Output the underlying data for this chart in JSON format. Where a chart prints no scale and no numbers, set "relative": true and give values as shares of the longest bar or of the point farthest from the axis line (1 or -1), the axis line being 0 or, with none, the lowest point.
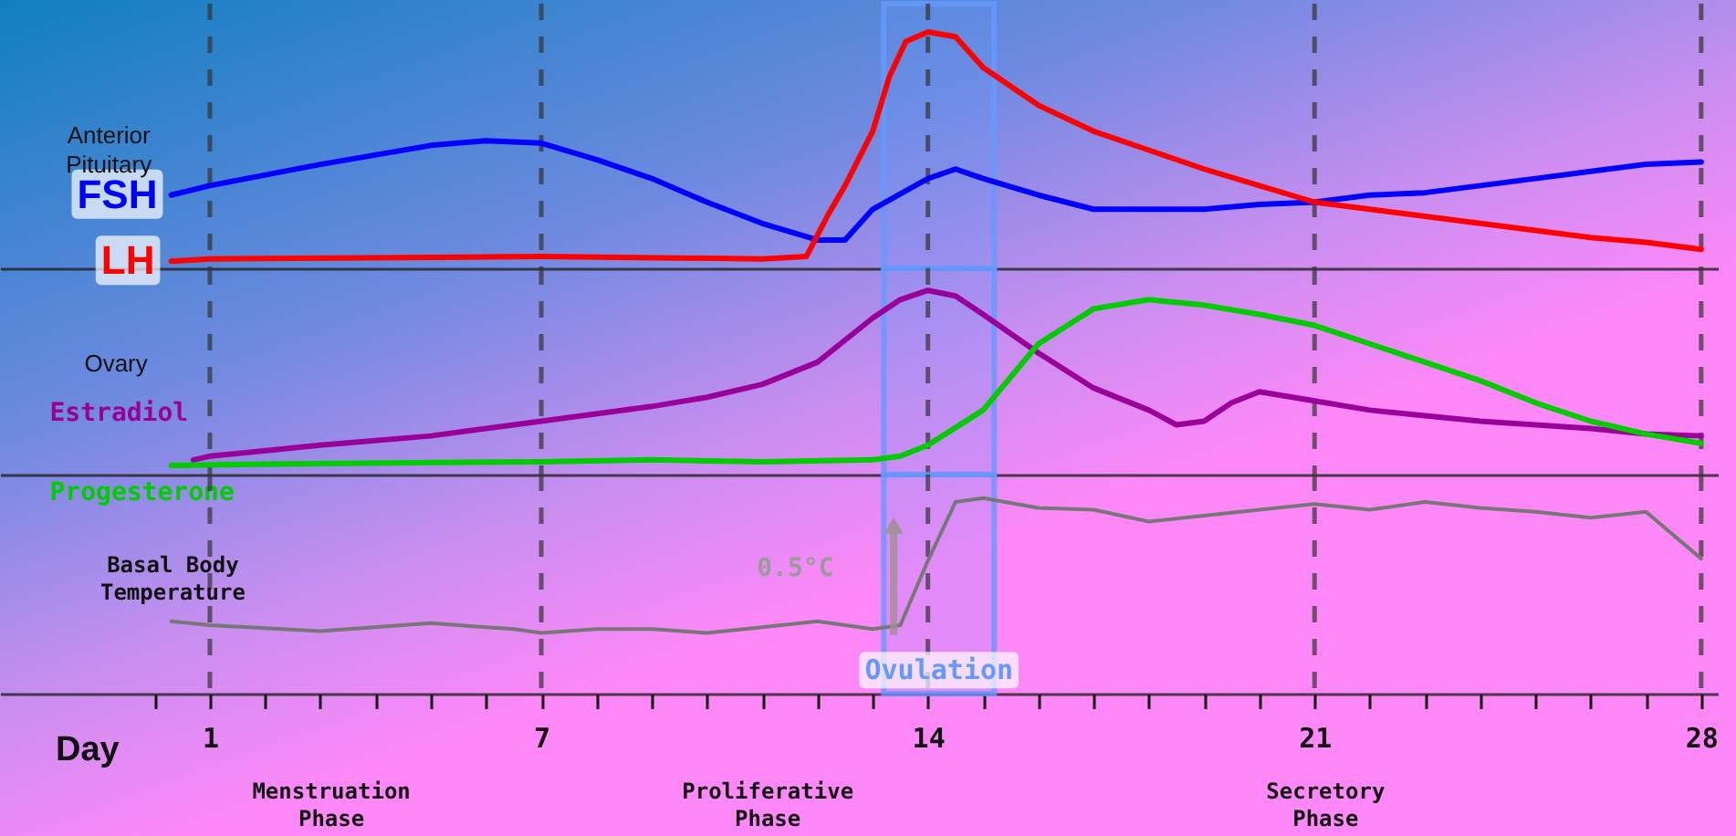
{
  "chart_data": [
    {
      "type": "line",
      "relative": true,
      "xlim": [
        -2.8,
        28.3
      ],
      "tick_labels": false,
      "annotations": [
        "Anterior Pituitary"
      ],
      "bands": [
        {
          "axis": "x",
          "from": 13.2,
          "to": 15.2,
          "color": "#6699ff"
        }
      ],
      "ref_lines": [
        {
          "axis": "x",
          "value": 1,
          "color": "#333333",
          "line_style": "dashed"
        },
        {
          "axis": "x",
          "value": 7,
          "color": "#333333",
          "line_style": "dashed"
        },
        {
          "axis": "x",
          "value": 14,
          "color": "#333333",
          "line_style": "dashed"
        },
        {
          "axis": "x",
          "value": 21,
          "color": "#333333",
          "line_style": "dashed"
        },
        {
          "axis": "x",
          "value": 28,
          "color": "#333333",
          "line_style": "dashed"
        }
      ],
      "series": [
        {
          "name": "FSH",
          "color": "#0000ff",
          "x": [
            0.3,
            1,
            3,
            5,
            6,
            7,
            8,
            9,
            10,
            11,
            12,
            12.5,
            13,
            14,
            14.5,
            15,
            16,
            17,
            18,
            19,
            20,
            21,
            22,
            23,
            24,
            25,
            26,
            27,
            28
          ],
          "values": [
            0.31,
            0.35,
            0.44,
            0.52,
            0.54,
            0.53,
            0.46,
            0.38,
            0.28,
            0.19,
            0.12,
            0.12,
            0.25,
            0.38,
            0.42,
            0.38,
            0.31,
            0.25,
            0.25,
            0.25,
            0.27,
            0.28,
            0.31,
            0.32,
            0.35,
            0.38,
            0.41,
            0.44,
            0.45
          ]
        },
        {
          "name": "LH",
          "color": "#ff0000",
          "x": [
            0.3,
            1,
            7,
            11,
            11.8,
            12.2,
            12.5,
            13,
            13.3,
            13.6,
            14,
            14.5,
            15,
            16,
            17,
            18,
            19,
            20,
            21,
            22,
            23,
            24,
            25,
            26,
            27,
            28
          ],
          "values": [
            0.03,
            0.04,
            0.05,
            0.04,
            0.05,
            0.23,
            0.35,
            0.58,
            0.81,
            0.96,
            1,
            0.98,
            0.85,
            0.69,
            0.58,
            0.5,
            0.42,
            0.35,
            0.28,
            0.25,
            0.22,
            0.19,
            0.16,
            0.13,
            0.11,
            0.08
          ]
        }
      ]
    },
    {
      "type": "line",
      "relative": true,
      "xlim": [
        -2.8,
        28.3
      ],
      "tick_labels": false,
      "annotations": [
        "Ovary"
      ],
      "bands": [
        {
          "axis": "x",
          "from": 13.2,
          "to": 15.2,
          "color": "#6699ff"
        }
      ],
      "ref_lines": [
        {
          "axis": "x",
          "value": 1,
          "color": "#333333",
          "line_style": "dashed"
        },
        {
          "axis": "x",
          "value": 7,
          "color": "#333333",
          "line_style": "dashed"
        },
        {
          "axis": "x",
          "value": 14,
          "color": "#333333",
          "line_style": "dashed"
        },
        {
          "axis": "x",
          "value": 21,
          "color": "#333333",
          "line_style": "dashed"
        },
        {
          "axis": "x",
          "value": 28,
          "color": "#333333",
          "line_style": "dashed"
        }
      ],
      "series": [
        {
          "name": "Estradiol",
          "color": "#990099",
          "x": [
            0.7,
            1,
            3,
            5,
            7,
            9,
            10,
            11,
            12,
            13,
            13.5,
            14,
            14.5,
            15,
            16,
            17,
            18,
            18.5,
            19,
            19.5,
            20,
            21,
            22,
            23,
            24,
            25,
            26,
            27,
            28
          ],
          "values": [
            0.08,
            0.1,
            0.16,
            0.21,
            0.29,
            0.37,
            0.42,
            0.49,
            0.61,
            0.85,
            0.95,
            1,
            0.97,
            0.87,
            0.66,
            0.47,
            0.35,
            0.27,
            0.29,
            0.39,
            0.45,
            0.4,
            0.35,
            0.32,
            0.29,
            0.27,
            0.25,
            0.22,
            0.21
          ]
        },
        {
          "name": "Progesterone",
          "color": "#00cc00",
          "x": [
            0.3,
            3,
            7,
            9,
            11,
            13,
            13.5,
            14,
            15,
            16,
            17,
            18,
            19,
            20,
            21,
            22,
            23,
            24,
            25,
            26,
            27,
            28
          ],
          "values": [
            0.05,
            0.06,
            0.07,
            0.08,
            0.07,
            0.08,
            0.1,
            0.16,
            0.35,
            0.71,
            0.9,
            0.95,
            0.92,
            0.87,
            0.81,
            0.71,
            0.61,
            0.51,
            0.39,
            0.29,
            0.22,
            0.17
          ]
        }
      ]
    },
    {
      "type": "line",
      "relative": true,
      "xlim": [
        -2.8,
        28.3
      ],
      "tick_labels": "x",
      "xlabel": "Day",
      "xticks": [
        {
          "value": 0,
          "label": null
        },
        1,
        {
          "value": 2,
          "label": null
        },
        {
          "value": 3,
          "label": null
        },
        {
          "value": 4,
          "label": null
        },
        {
          "value": 5,
          "label": null
        },
        {
          "value": 6,
          "label": null
        },
        7,
        {
          "value": 8,
          "label": null
        },
        {
          "value": 9,
          "label": null
        },
        {
          "value": 10,
          "label": null
        },
        {
          "value": 11,
          "label": null
        },
        {
          "value": 12,
          "label": null
        },
        {
          "value": 13,
          "label": null
        },
        14,
        {
          "value": 15,
          "label": null
        },
        {
          "value": 16,
          "label": null
        },
        {
          "value": 17,
          "label": null
        },
        {
          "value": 18,
          "label": null
        },
        {
          "value": 19,
          "label": null
        },
        {
          "value": 20,
          "label": null
        },
        21,
        {
          "value": 22,
          "label": null
        },
        {
          "value": 23,
          "label": null
        },
        {
          "value": 24,
          "label": null
        },
        {
          "value": 25,
          "label": null
        },
        {
          "value": 26,
          "label": null
        },
        {
          "value": 27,
          "label": null
        },
        28
      ],
      "annotations": [
        "Basal Body Temperature",
        "0.5°C",
        "Menstruation Phase",
        "Proliferative Phase",
        "Secretory Phase"
      ],
      "bands": [
        {
          "axis": "x",
          "from": 13.2,
          "to": 15.2,
          "color": "#6699ff",
          "label": "Ovulation"
        }
      ],
      "ref_lines": [
        {
          "axis": "x",
          "value": 1,
          "color": "#333333",
          "line_style": "dashed"
        },
        {
          "axis": "x",
          "value": 7,
          "color": "#333333",
          "line_style": "dashed"
        },
        {
          "axis": "x",
          "value": 14,
          "color": "#333333",
          "line_style": "dashed"
        },
        {
          "axis": "x",
          "value": 21,
          "color": "#333333",
          "line_style": "dashed"
        },
        {
          "axis": "x",
          "value": 28,
          "color": "#333333",
          "line_style": "dashed"
        }
      ],
      "series": [
        {
          "color": "#777777",
          "x": [
            0.3,
            1,
            3,
            5,
            6.5,
            7,
            8,
            9,
            10,
            11,
            12,
            13,
            13.5,
            14,
            14.5,
            15,
            16,
            17,
            18,
            19,
            20,
            21,
            22,
            23,
            24,
            25,
            26,
            27,
            28
          ],
          "values": [
            0.37,
            0.35,
            0.32,
            0.36,
            0.33,
            0.31,
            0.33,
            0.33,
            0.31,
            0.34,
            0.37,
            0.33,
            0.35,
            0.68,
            0.98,
            1,
            0.95,
            0.94,
            0.88,
            0.91,
            0.94,
            0.97,
            0.94,
            0.98,
            0.95,
            0.93,
            0.9,
            0.93,
            0.69
          ]
        }
      ]
    }
  ]
}
